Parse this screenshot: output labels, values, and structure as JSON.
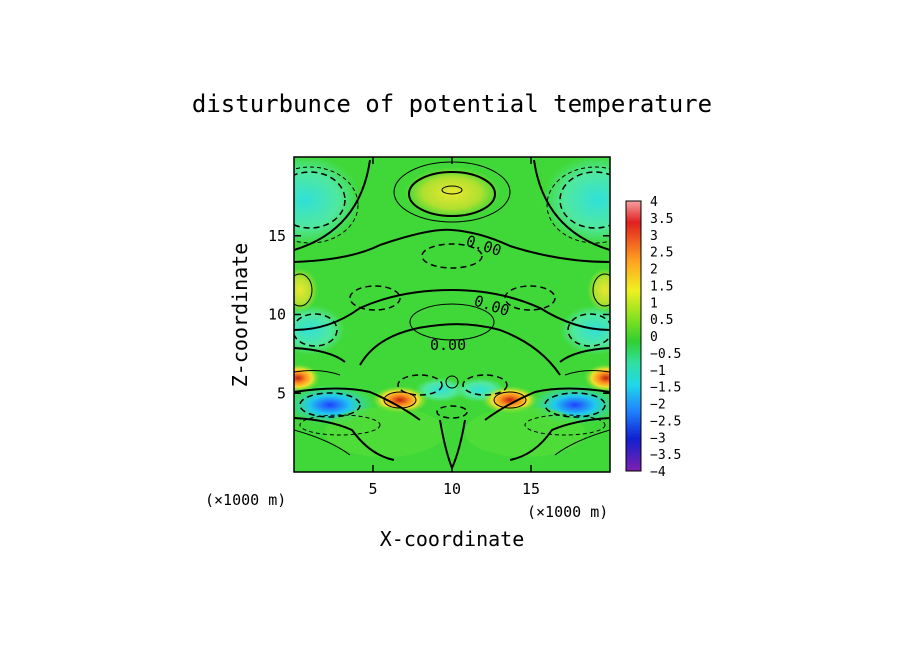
{
  "chart_data": {
    "type": "heatmap",
    "title": "disturbunce of potential temperature",
    "xlabel": "X-coordinate",
    "ylabel": "Z-coordinate",
    "xunit": "(×1000 m)",
    "zunit": "(×1000 m)",
    "xlim": [
      0,
      20
    ],
    "ylim": [
      0,
      20
    ],
    "xticks": [
      "5",
      "10",
      "15"
    ],
    "yticks": [
      "5",
      "10",
      "15"
    ],
    "contour_labels": [
      "0.00",
      "0.00",
      "0.00"
    ],
    "colorbar": {
      "range": [
        -4,
        4
      ],
      "ticks": [
        "4",
        "3.5",
        "3",
        "2.5",
        "2",
        "1.5",
        "1",
        "0.5",
        "0",
        "−0.5",
        "−1",
        "−1.5",
        "−2",
        "−2.5",
        "−3",
        "−3.5",
        "−4"
      ]
    }
  }
}
